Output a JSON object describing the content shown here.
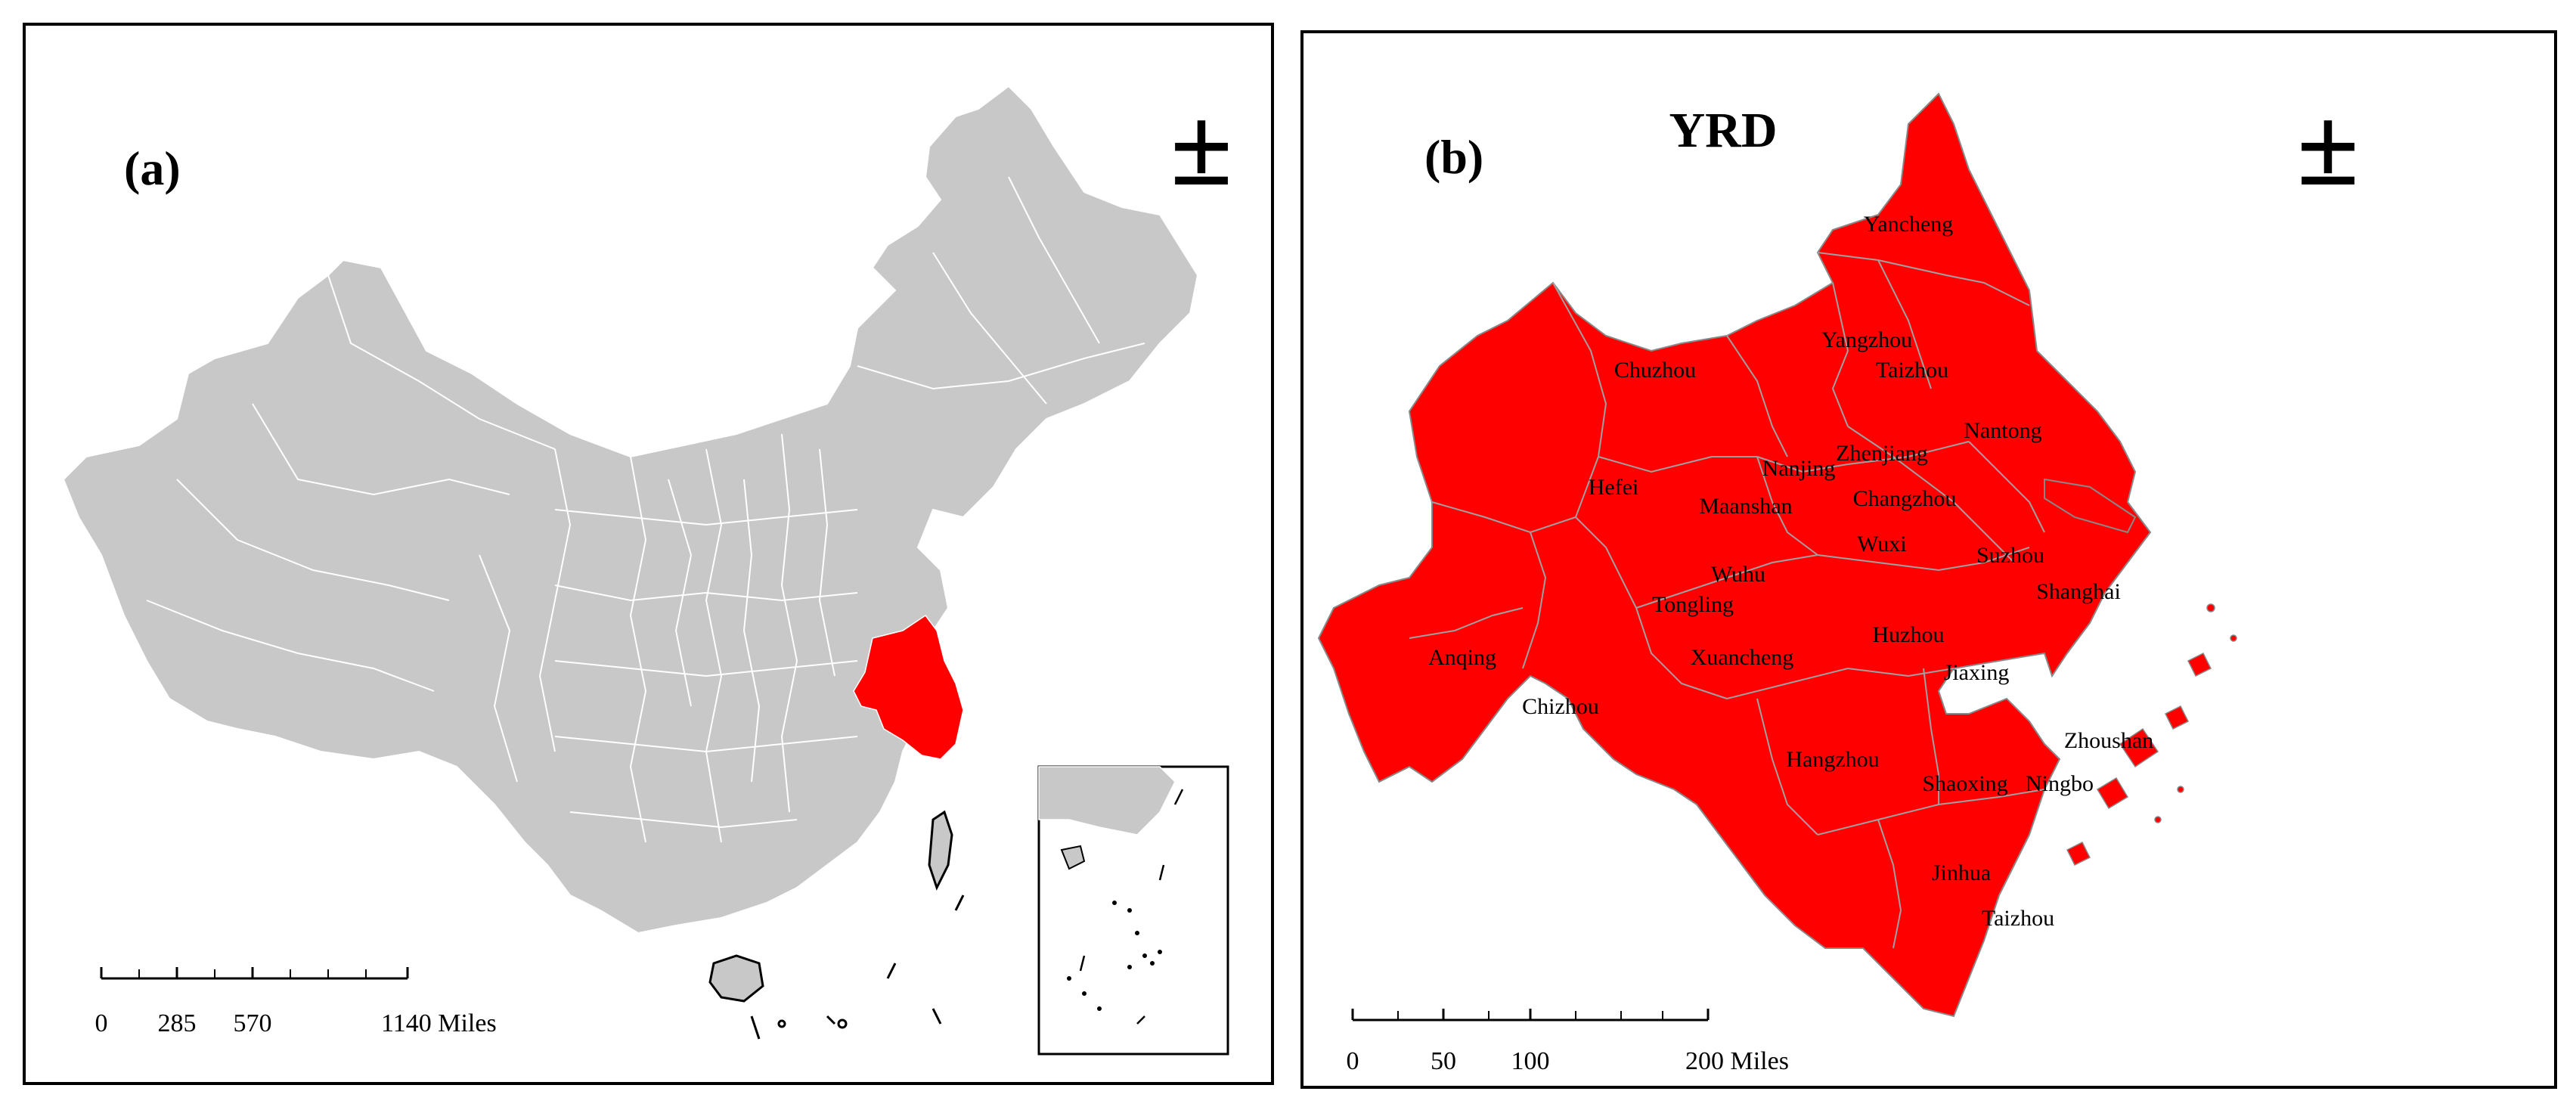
{
  "panel_a": {
    "label": "(a)",
    "north_symbol": "±",
    "scale": {
      "ticks": [
        "0",
        "285",
        "570",
        "1140 Miles"
      ]
    },
    "highlight_color": "#ff0000",
    "land_color": "#c8c8c8"
  },
  "panel_b": {
    "label": "(b)",
    "title": "YRD",
    "north_symbol": "±",
    "scale": {
      "ticks": [
        "0",
        "50",
        "100",
        "200 Miles"
      ]
    },
    "fill_color": "#ff0000",
    "cities": [
      "Yancheng",
      "Yangzhou",
      "Taizhou",
      "Chuzhou",
      "Nantong",
      "Zhenjiang",
      "Nanjing",
      "Hefei",
      "Changzhou",
      "Maanshan",
      "Wuxi",
      "Suzhou",
      "Wuhu",
      "Shanghai",
      "Tongling",
      "Huzhou",
      "Anqing",
      "Xuancheng",
      "Jiaxing",
      "Chizhou",
      "Zhoushan",
      "Hangzhou",
      "Shaoxing",
      "Ningbo",
      "Jinhua",
      "Taizhou"
    ]
  }
}
